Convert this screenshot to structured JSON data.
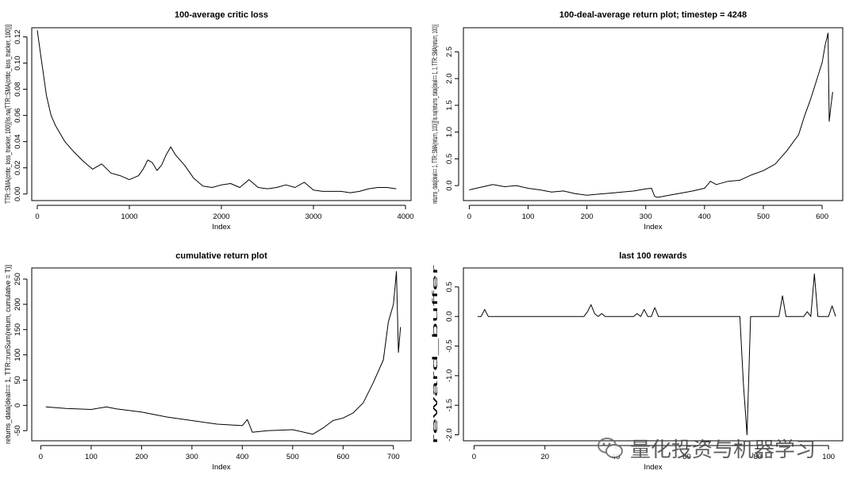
{
  "chart_data": [
    {
      "type": "line",
      "title": "100-average critic loss",
      "xlabel": "Index",
      "ylabel": "TTR::SMA(critic_loss_tracker, 100)[!is.na(TTR::SMA(critic_loss_tracker, 100))]",
      "xlim": [
        -60,
        4060
      ],
      "ylim": [
        -0.005,
        0.127
      ],
      "xticks": [
        0,
        1000,
        2000,
        3000,
        4000
      ],
      "yticks": [
        0.0,
        0.02,
        0.04,
        0.06,
        0.08,
        0.1,
        0.12
      ],
      "ytick_labels": [
        "0.00",
        "0.02",
        "0.04",
        "0.06",
        "0.08",
        "0.10",
        "0.12"
      ],
      "x": [
        0,
        30,
        60,
        100,
        150,
        200,
        300,
        400,
        500,
        600,
        700,
        800,
        900,
        1000,
        1100,
        1150,
        1200,
        1250,
        1300,
        1350,
        1400,
        1450,
        1500,
        1600,
        1700,
        1800,
        1900,
        2000,
        2100,
        2200,
        2300,
        2400,
        2500,
        2600,
        2700,
        2800,
        2900,
        3000,
        3100,
        3200,
        3300,
        3400,
        3500,
        3600,
        3700,
        3800,
        3900
      ],
      "y": [
        0.125,
        0.11,
        0.095,
        0.075,
        0.06,
        0.052,
        0.04,
        0.032,
        0.025,
        0.019,
        0.023,
        0.016,
        0.014,
        0.011,
        0.014,
        0.019,
        0.026,
        0.024,
        0.018,
        0.022,
        0.03,
        0.036,
        0.03,
        0.022,
        0.012,
        0.006,
        0.005,
        0.007,
        0.008,
        0.005,
        0.011,
        0.005,
        0.004,
        0.005,
        0.007,
        0.005,
        0.009,
        0.003,
        0.002,
        0.002,
        0.002,
        0.001,
        0.002,
        0.004,
        0.005,
        0.005,
        0.004
      ]
    },
    {
      "type": "line",
      "title": "100-deal-average return plot; timestep = 4248",
      "xlabel": "Index",
      "ylabel": "returns_data[deal== 1, TTR::SMA(return, 100)][!is.na(returns_data[deal== 1, 1, TTR::SMA(return, 100)]",
      "xlim": [
        -10,
        635
      ],
      "ylim": [
        -0.28,
        2.95
      ],
      "xticks": [
        0,
        100,
        200,
        300,
        400,
        500,
        600
      ],
      "yticks": [
        0.0,
        0.5,
        1.0,
        1.5,
        2.0,
        2.5
      ],
      "ytick_labels": [
        "0.0",
        "0.5",
        "1.0",
        "1.5",
        "2.0",
        "2.5"
      ],
      "x": [
        0,
        20,
        40,
        60,
        80,
        100,
        120,
        140,
        160,
        180,
        200,
        220,
        240,
        260,
        280,
        300,
        310,
        315,
        320,
        340,
        360,
        380,
        400,
        410,
        420,
        440,
        460,
        480,
        500,
        520,
        540,
        560,
        570,
        580,
        590,
        600,
        605,
        610,
        612,
        615,
        618
      ],
      "y": [
        -0.08,
        -0.03,
        0.02,
        -0.02,
        0.0,
        -0.05,
        -0.08,
        -0.12,
        -0.1,
        -0.15,
        -0.18,
        -0.16,
        -0.14,
        -0.12,
        -0.1,
        -0.06,
        -0.05,
        -0.2,
        -0.22,
        -0.18,
        -0.14,
        -0.1,
        -0.05,
        0.08,
        0.02,
        0.08,
        0.1,
        0.2,
        0.28,
        0.4,
        0.65,
        0.95,
        1.3,
        1.6,
        1.95,
        2.3,
        2.62,
        2.85,
        1.2,
        1.5,
        1.75
      ]
    },
    {
      "type": "line",
      "title": "cumulative return plot",
      "xlabel": "Index",
      "ylabel": "returns_data[deal== 1, TTR::runSum(return, cumulative = T)]",
      "xlim": [
        -18,
        735
      ],
      "ylim": [
        -70,
        272
      ],
      "xticks": [
        0,
        100,
        200,
        300,
        400,
        500,
        600,
        700
      ],
      "yticks": [
        -50,
        0,
        50,
        100,
        150,
        200,
        250
      ],
      "ytick_labels": [
        "-50",
        "0",
        "50",
        "100",
        "150",
        "200",
        "250"
      ],
      "x": [
        10,
        50,
        100,
        130,
        150,
        200,
        250,
        300,
        350,
        400,
        410,
        420,
        450,
        500,
        540,
        560,
        580,
        600,
        620,
        640,
        660,
        680,
        690,
        700,
        706,
        710,
        714
      ],
      "y": [
        -3,
        -6,
        -8,
        -3,
        -7,
        -13,
        -23,
        -30,
        -37,
        -40,
        -28,
        -53,
        -50,
        -48,
        -57,
        -45,
        -30,
        -25,
        -15,
        5,
        45,
        90,
        165,
        200,
        265,
        105,
        155
      ]
    },
    {
      "type": "line",
      "title": "last 100 rewards",
      "xlabel": "Index",
      "ylabel": "reward_buffer",
      "xlim": [
        -3,
        104
      ],
      "ylim": [
        -2.1,
        0.82
      ],
      "xticks": [
        0,
        20,
        40,
        60,
        80,
        100
      ],
      "yticks": [
        -2.0,
        -1.5,
        -1.0,
        -0.5,
        0.0,
        0.5
      ],
      "ytick_labels": [
        "-2.0",
        "-1.5",
        "-1.0",
        "-0.5",
        "0.0",
        "0.5"
      ],
      "x": [
        1,
        2,
        3,
        4,
        5,
        31,
        32,
        33,
        34,
        35,
        36,
        37,
        45,
        46,
        47,
        48,
        49,
        50,
        51,
        52,
        75,
        76,
        77,
        78,
        86,
        87,
        88,
        89,
        90,
        93,
        94,
        95,
        96,
        97,
        98,
        99,
        100,
        101,
        102
      ],
      "y": [
        0,
        0,
        0.12,
        0,
        0,
        0,
        0.08,
        0.2,
        0.05,
        0,
        0.05,
        0,
        0,
        0.05,
        0,
        0.12,
        0,
        0,
        0.15,
        0,
        0,
        -1.15,
        -2.0,
        0,
        0,
        0.35,
        0,
        0,
        0,
        0,
        0.08,
        0,
        0.72,
        0,
        0,
        0,
        0,
        0.18,
        0
      ]
    }
  ],
  "watermark": {
    "text": "量化投资与机器学习",
    "icon": "wechat-icon"
  }
}
